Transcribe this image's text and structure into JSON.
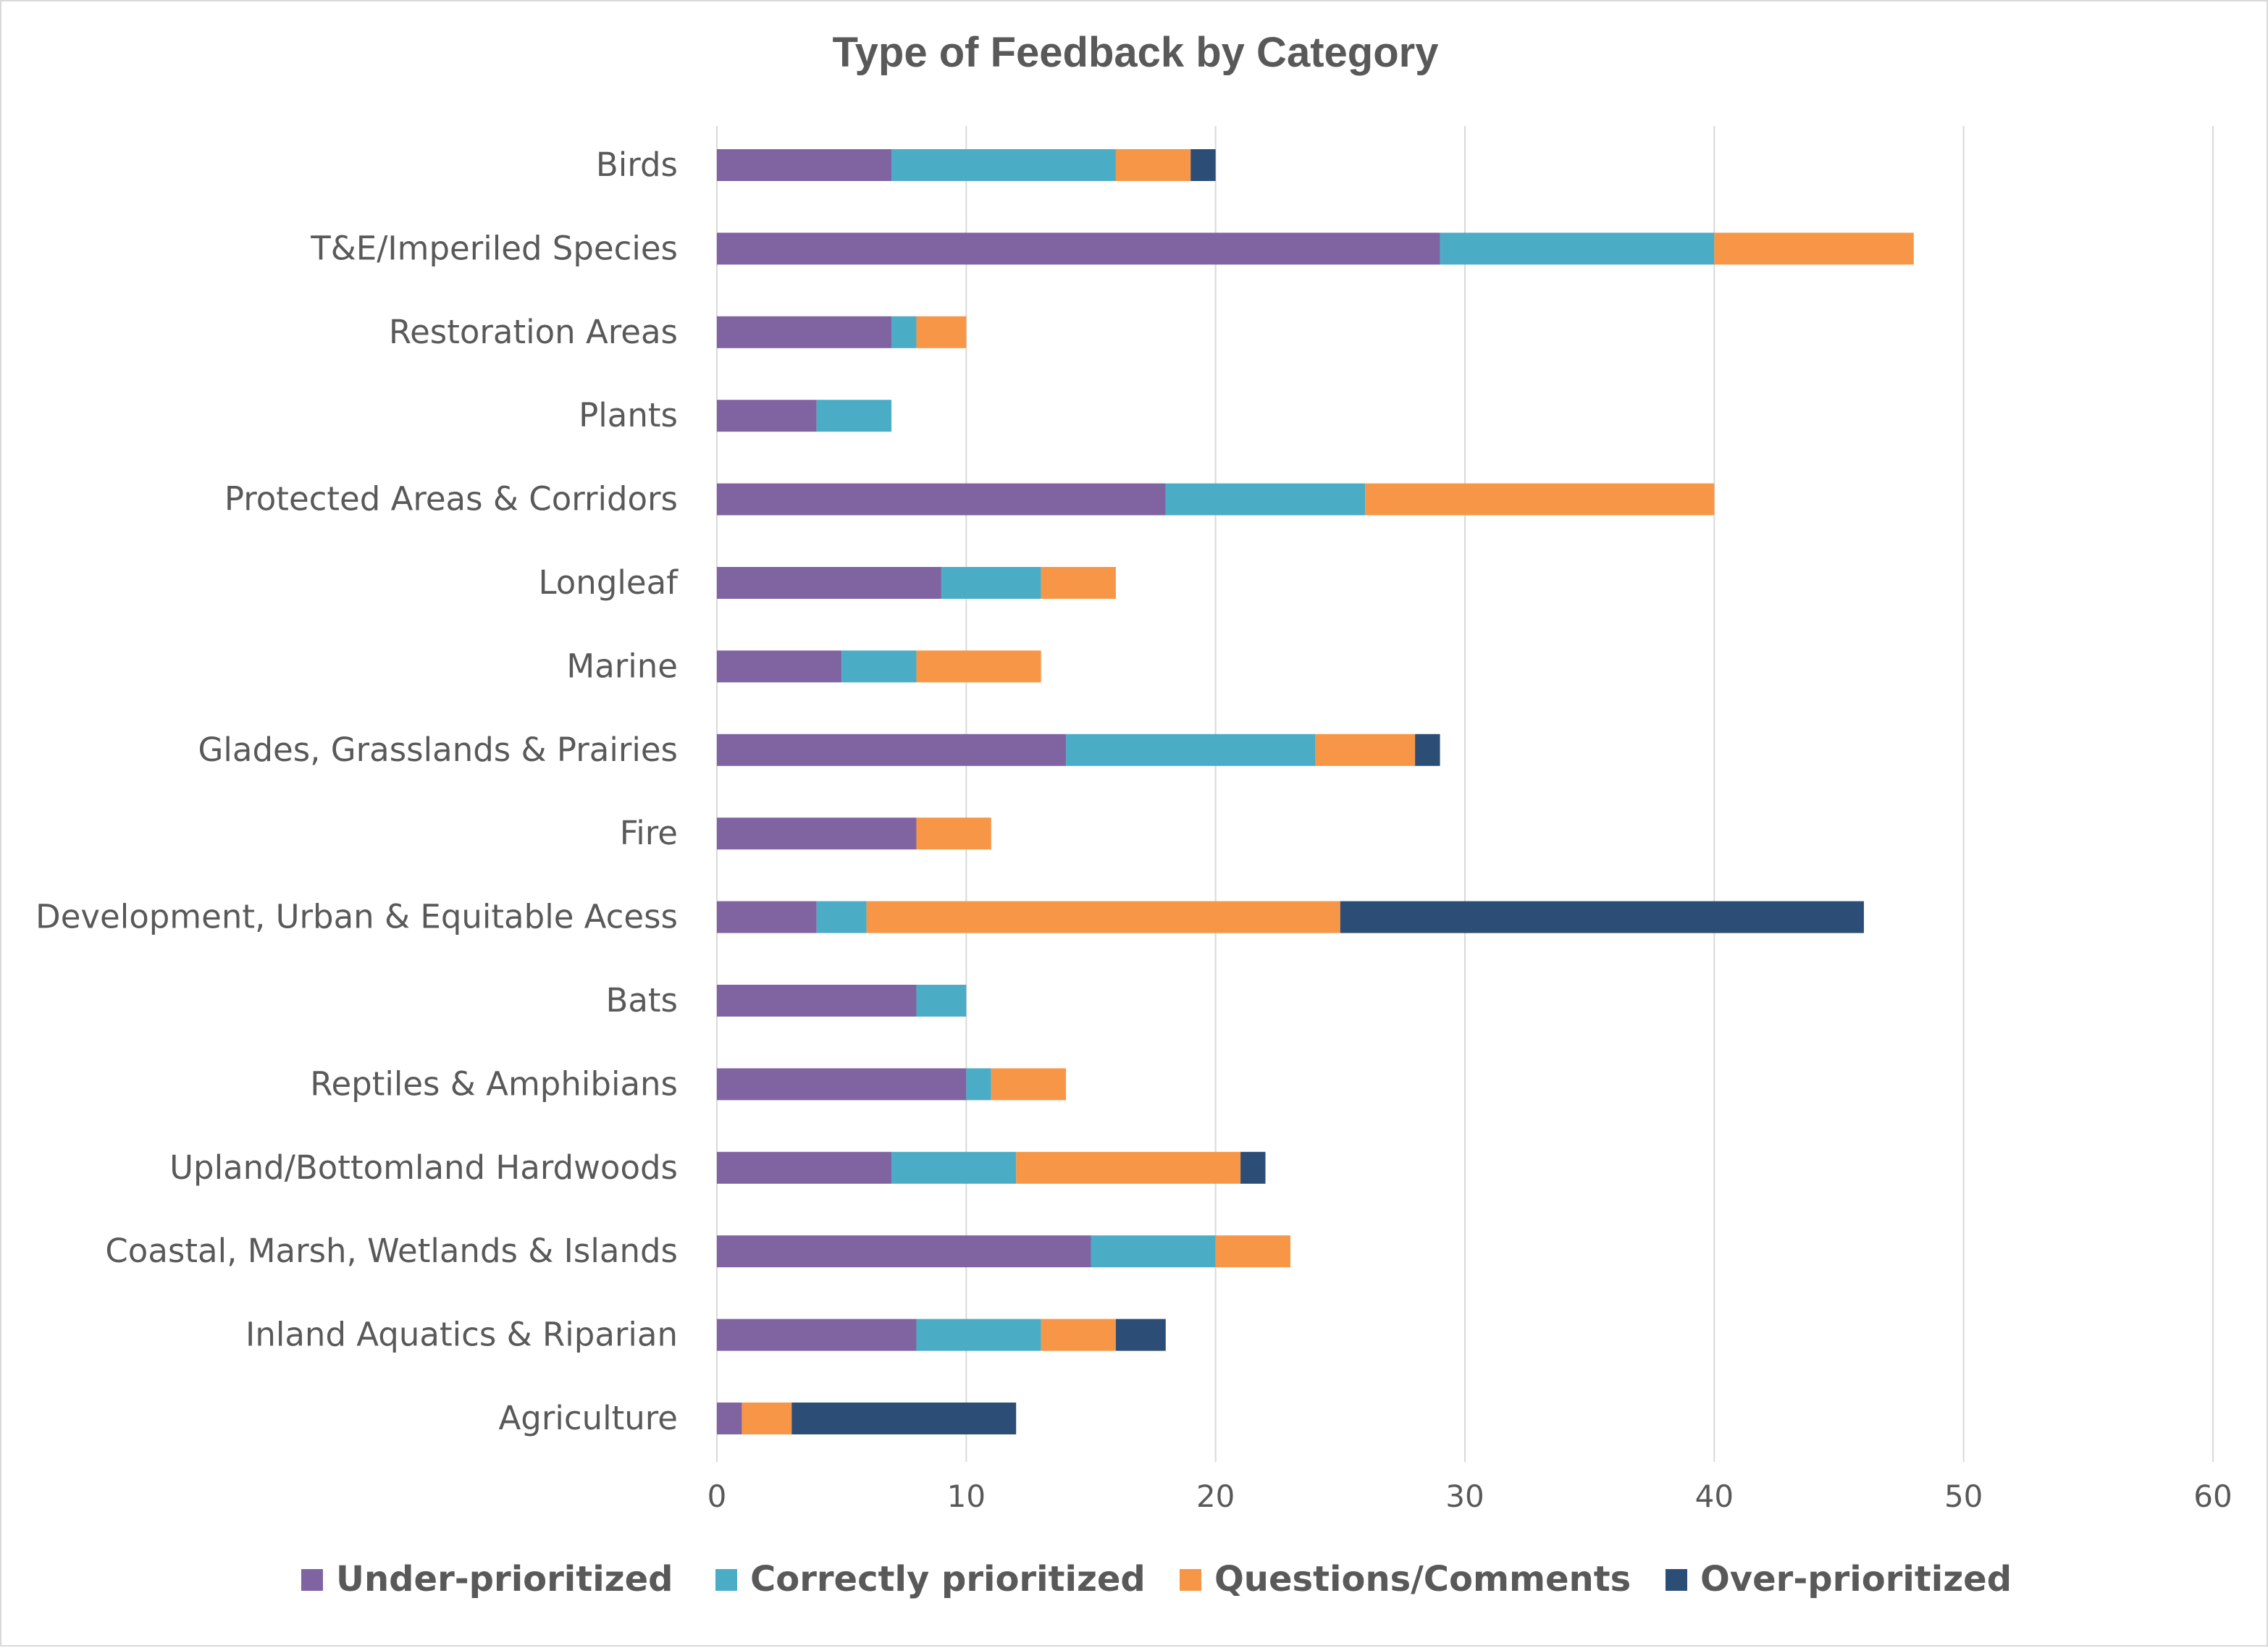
{
  "chart_data": {
    "type": "bar",
    "orientation": "horizontal",
    "stacked": true,
    "title": "Type of Feedback by Category",
    "xlabel": "",
    "ylabel": "",
    "xlim": [
      0,
      60
    ],
    "x_ticks": [
      "0",
      "10",
      "20",
      "30",
      "40",
      "50",
      "60"
    ],
    "grid": "vertical",
    "legend_position": "bottom",
    "categories": [
      "Birds",
      "T&E/Imperiled Species",
      "Restoration Areas",
      "Plants",
      "Protected Areas & Corridors",
      "Longleaf",
      "Marine",
      "Glades, Grasslands & Prairies",
      "Fire",
      "Development, Urban &  Equitable Acess",
      "Bats",
      "Reptiles & Amphibians",
      "Upland/Bottomland Hardwoods",
      "Coastal, Marsh, Wetlands & Islands",
      "Inland Aquatics & Riparian",
      "Agriculture"
    ],
    "series": [
      {
        "name": "Under-prioritized",
        "color": "#8064a2",
        "values": [
          7,
          29,
          7,
          4,
          18,
          9,
          5,
          14,
          8,
          4,
          8,
          10,
          7,
          15,
          8,
          1
        ]
      },
      {
        "name": "Correctly prioritized",
        "color": "#4bacc6",
        "values": [
          9,
          11,
          1,
          3,
          8,
          4,
          3,
          10,
          0,
          2,
          2,
          1,
          5,
          5,
          5,
          0
        ]
      },
      {
        "name": "Questions/Comments",
        "color": "#f79646",
        "values": [
          3,
          8,
          2,
          0,
          14,
          3,
          5,
          4,
          3,
          19,
          0,
          3,
          9,
          3,
          3,
          2
        ]
      },
      {
        "name": "Over-prioritized",
        "color": "#2c4d75",
        "values": [
          1,
          0,
          0,
          0,
          0,
          0,
          0,
          1,
          0,
          21,
          0,
          0,
          1,
          0,
          2,
          9
        ]
      }
    ]
  }
}
